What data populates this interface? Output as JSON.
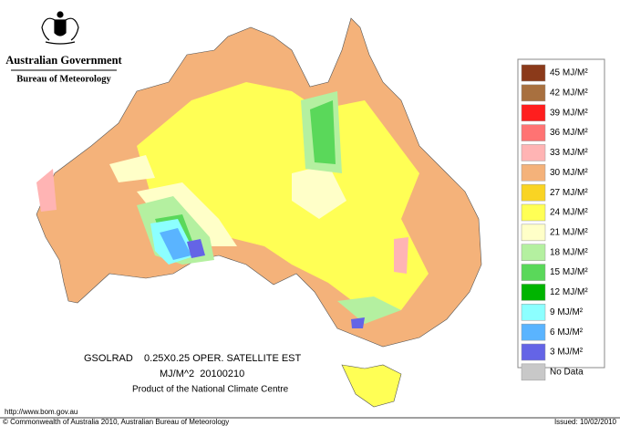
{
  "header": {
    "government": "Australian Government",
    "bureau": "Bureau of Meteorology"
  },
  "legend": [
    {
      "label": "45 MJ/M²",
      "color": "#8b3a1a"
    },
    {
      "label": "42 MJ/M²",
      "color": "#a8703f"
    },
    {
      "label": "39 MJ/M²",
      "color": "#ff1e1e"
    },
    {
      "label": "36 MJ/M²",
      "color": "#ff7373"
    },
    {
      "label": "33 MJ/M²",
      "color": "#ffb4b4"
    },
    {
      "label": "30 MJ/M²",
      "color": "#f4b27a"
    },
    {
      "label": "27 MJ/M²",
      "color": "#f9d423"
    },
    {
      "label": "24 MJ/M²",
      "color": "#ffff55"
    },
    {
      "label": "21 MJ/M²",
      "color": "#ffffc8"
    },
    {
      "label": "18 MJ/M²",
      "color": "#b4f0a0"
    },
    {
      "label": "15 MJ/M²",
      "color": "#5ad85a"
    },
    {
      "label": "12 MJ/M²",
      "color": "#00b400"
    },
    {
      "label": "9 MJ/M²",
      "color": "#8cffff"
    },
    {
      "label": "6 MJ/M²",
      "color": "#5ab4ff"
    },
    {
      "label": "3 MJ/M²",
      "color": "#6464e6"
    },
    {
      "label": "No Data",
      "color": "#c8c8c8"
    }
  ],
  "caption": {
    "line1": "GSOLRAD    0.25X0.25 OPER. SATELLITE EST",
    "line2": "MJ/M^2  20100210",
    "line3": "Product of the National Climate Centre"
  },
  "footer": {
    "url": "http://www.bom.gov.au",
    "copyright": "© Commonwealth of Australia 2010, Australian Bureau of Meteorology",
    "issued": "Issued: 10/02/2010"
  }
}
